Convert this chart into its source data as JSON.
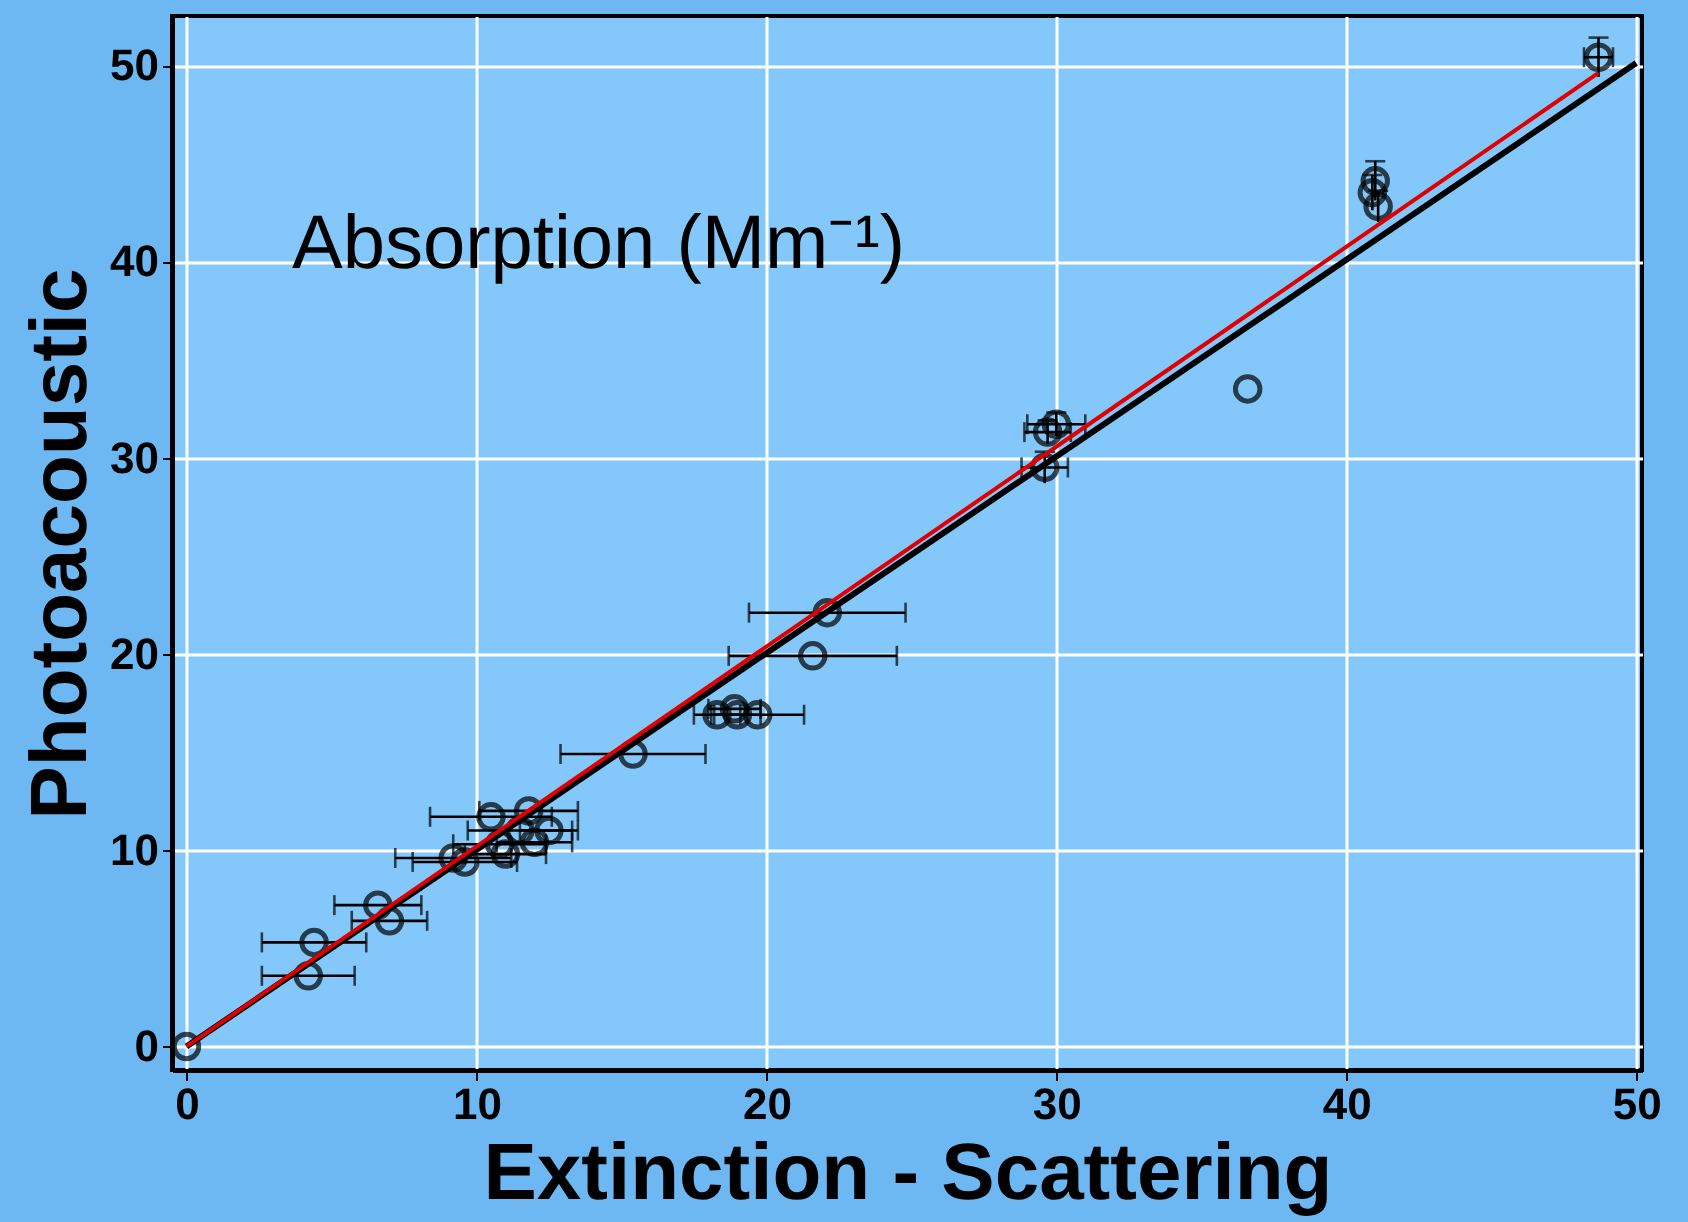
{
  "chart_data": {
    "type": "scatter",
    "xlabel": "Extinction - Scattering",
    "ylabel": "Photoacoustic",
    "annotations": [
      "Absorption (Mm⁻¹)"
    ],
    "xlim": [
      -0.5,
      50.2
    ],
    "ylim": [
      -1.2,
      52.5
    ],
    "xticks": [
      0,
      10,
      20,
      30,
      40,
      50
    ],
    "yticks": [
      0,
      10,
      20,
      30,
      40,
      50
    ],
    "grid": true,
    "series": [
      {
        "marker": "circle",
        "color": "#000000",
        "x": [
          0,
          4.2,
          4.4,
          6.6,
          7.0,
          9.2,
          9.6,
          10.5,
          10.8,
          11.0,
          11.5,
          11.8,
          12.0,
          12.5,
          15.4,
          18.3,
          18.9,
          19.0,
          19.7,
          21.6,
          22.1,
          29.6,
          29.7,
          30.0,
          36.6,
          40.9,
          41.0,
          41.1,
          48.7
        ],
        "values": [
          0,
          3.6,
          5.3,
          7.2,
          6.4,
          9.6,
          9.4,
          11.7,
          10.3,
          9.8,
          11.0,
          12.0,
          10.4,
          11.0,
          14.9,
          16.9,
          17.2,
          16.9,
          16.9,
          19.9,
          22.1,
          29.5,
          31.3,
          31.7,
          33.5,
          43.5,
          44.1,
          42.8,
          50.4
        ],
        "xerrors": [
          null,
          1.6,
          1.8,
          1.5,
          1.3,
          2.0,
          1.8,
          2.1,
          1.6,
          1.4,
          1.8,
          1.7,
          1.3,
          1.0,
          2.5,
          0.8,
          0.9,
          0.8,
          1.6,
          2.9,
          2.7,
          0.8,
          0.8,
          1.0,
          null,
          null,
          null,
          null,
          0.5
        ],
        "errors": [
          null,
          null,
          null,
          null,
          null,
          null,
          null,
          null,
          null,
          null,
          null,
          null,
          null,
          null,
          null,
          null,
          null,
          null,
          null,
          null,
          null,
          0.8,
          0.6,
          0.6,
          null,
          0.9,
          1.0,
          0.8,
          1.0
        ]
      },
      {
        "type": "line",
        "color": "#000000",
        "x": [
          0,
          50
        ],
        "values": [
          0,
          50.1
        ]
      },
      {
        "type": "line",
        "color": "#e00000",
        "x": [
          0,
          48.7
        ],
        "values": [
          0,
          49.6
        ]
      }
    ]
  }
}
